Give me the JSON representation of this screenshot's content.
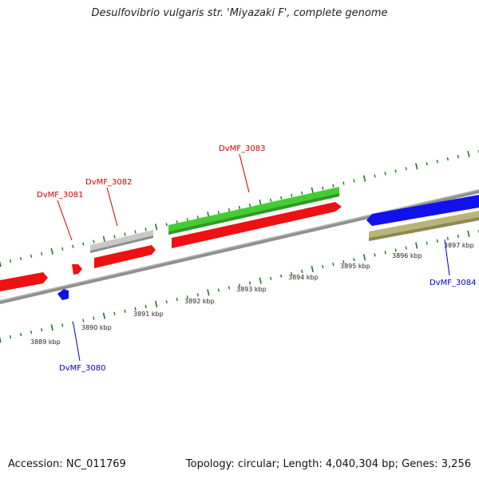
{
  "title": "Desulfovibrio vulgaris str. 'Miyazaki F', complete genome",
  "footer": {
    "accession_label": "Accession:",
    "accession": "NC_011769",
    "topology_text": "Topology: circular; Length: 4,040,304 bp; Genes: 3,256"
  },
  "colors": {
    "forward_gene": "#ee1111",
    "reverse_gene": "#1111ee",
    "rna_green": "#44cc33",
    "gray_feature": "#c8c8c8",
    "olive_feature": "#b8b47a",
    "tick": "#1a7a1a",
    "backbone": "#8a8a8a",
    "label_forward": "#cc0000",
    "label_reverse": "#0000cc"
  },
  "scale": {
    "unit": "kbp",
    "labels": [
      {
        "kbp": 3889,
        "text": "3889 kbp"
      },
      {
        "kbp": 3890,
        "text": "3890 kbp"
      },
      {
        "kbp": 3891,
        "text": "3891 kbp"
      },
      {
        "kbp": 3892,
        "text": "3892 kbp"
      },
      {
        "kbp": 3893,
        "text": "3893 kbp"
      },
      {
        "kbp": 3894,
        "text": "3894 kbp"
      },
      {
        "kbp": 3895,
        "text": "3895 kbp"
      },
      {
        "kbp": 3896,
        "text": "3896 kbp"
      },
      {
        "kbp": 3897,
        "text": "3897 kbp"
      }
    ]
  },
  "genes": [
    {
      "id": "DvMF_3080",
      "strand": "reverse",
      "start_kbp": 3889.74,
      "end_kbp": 3889.84
    },
    {
      "id": "DvMF_3081",
      "strand": "forward",
      "start_kbp": 3889.95,
      "end_kbp": 3890.05
    },
    {
      "id": "DvMF_3082",
      "strand": "forward",
      "start_kbp": 3890.3,
      "end_kbp": 3891.45
    },
    {
      "id": "DvMF_3083",
      "strand": "forward",
      "start_kbp": 3891.6,
      "end_kbp": 3894.95
    },
    {
      "id": "DvMF_3084",
      "strand": "reverse",
      "start_kbp": 3895.55,
      "end_kbp": 3897.8
    }
  ],
  "gene_labels": [
    {
      "text": "DvMF_3080",
      "strand": "reverse"
    },
    {
      "text": "DvMF_3081",
      "strand": "forward"
    },
    {
      "text": "DvMF_3082",
      "strand": "forward"
    },
    {
      "text": "DvMF_3083",
      "strand": "forward"
    },
    {
      "text": "DvMF_3084",
      "strand": "reverse"
    }
  ]
}
